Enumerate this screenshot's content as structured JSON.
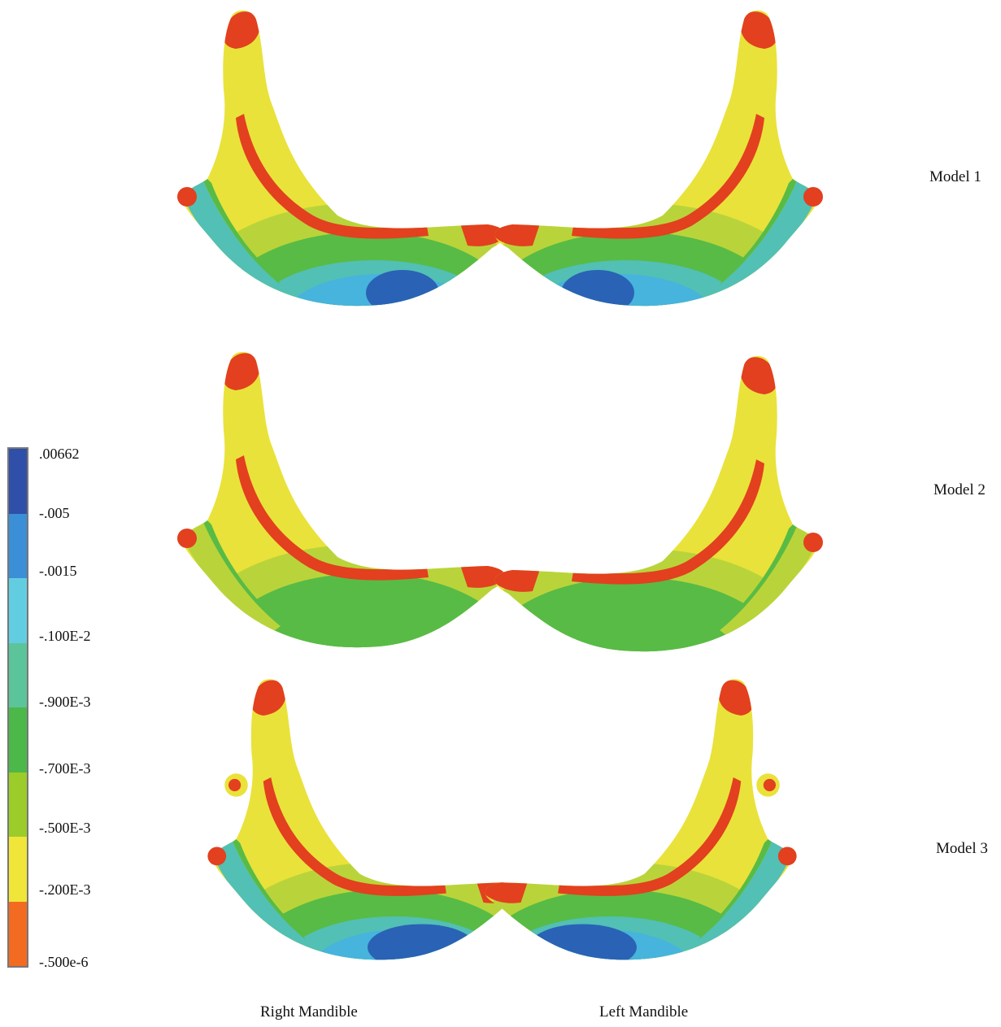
{
  "rows": [
    {
      "label": "Model 1"
    },
    {
      "label": "Model 2"
    },
    {
      "label": "Model 3"
    }
  ],
  "columns": [
    {
      "label": "Right Mandible"
    },
    {
      "label": "Left Mandible"
    }
  ],
  "colorbar": {
    "labels": [
      ".00662",
      "-.005",
      "-.0015",
      "-.100E-2",
      "-.900E-3",
      "-.700E-3",
      "-.500E-3",
      "-.200E-3",
      "-.500e-6"
    ],
    "colors": [
      "#2f4fa8",
      "#3a8fd6",
      "#62cde0",
      "#5cc49a",
      "#4cb84a",
      "#9ccc2a",
      "#f0e63a",
      "#f26b21"
    ]
  },
  "palette": {
    "red": "#e2401f",
    "yellow": "#e9e23a",
    "yellow_green": "#b9d43a",
    "green": "#58bb46",
    "teal": "#52c0b4",
    "cyan": "#46b4dc",
    "blue": "#2a62b6"
  }
}
